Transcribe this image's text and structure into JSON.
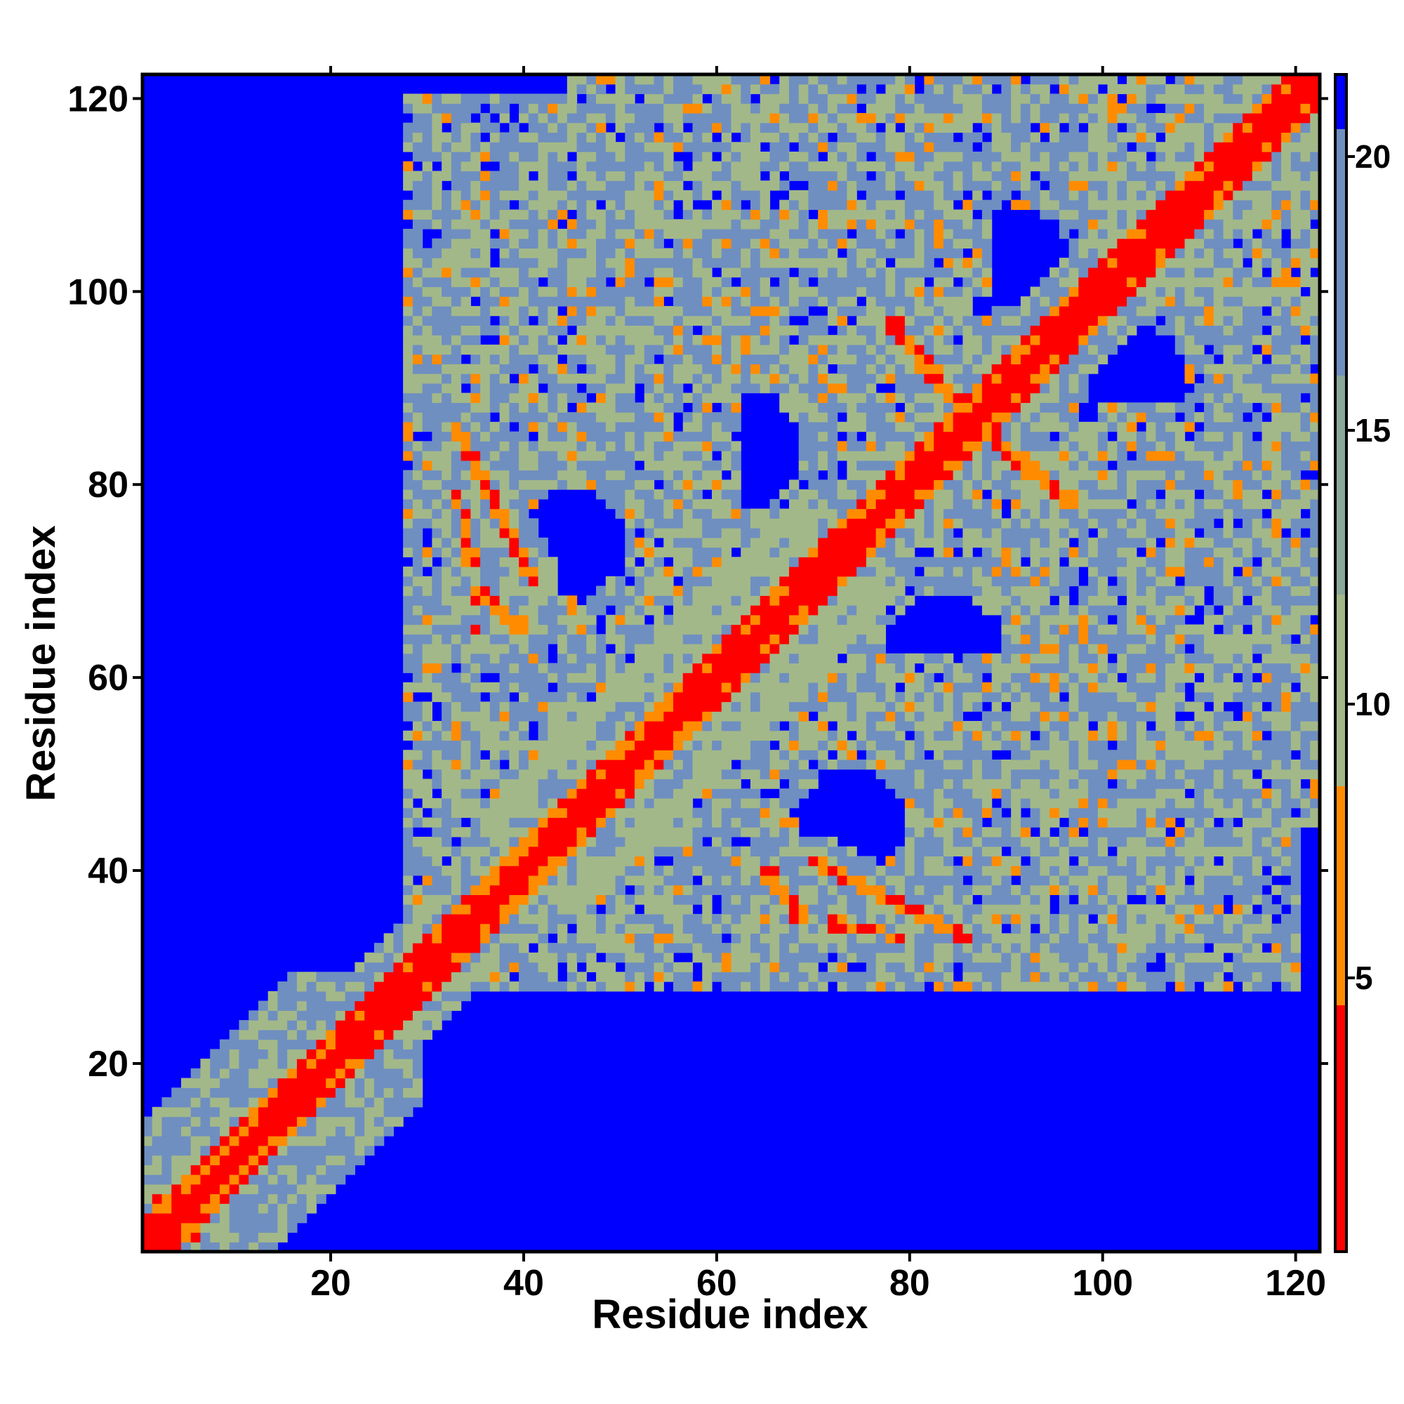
{
  "chart_data": {
    "type": "heatmap",
    "title": "",
    "xlabel": "Residue index",
    "ylabel": "Residue index",
    "n_residues": 122,
    "xlim": [
      1,
      122
    ],
    "ylim": [
      1,
      122
    ],
    "x_ticks": [
      20,
      40,
      60,
      80,
      100,
      120
    ],
    "y_ticks": [
      20,
      40,
      60,
      80,
      100,
      120
    ],
    "x_tick_labels": [
      "20",
      "40",
      "60",
      "80",
      "100",
      "120"
    ],
    "y_tick_labels": [
      "20",
      "40",
      "60",
      "80",
      "100",
      "120"
    ],
    "grid": false,
    "matrix_symmetric": true,
    "colorbar": {
      "placement": "right",
      "range": [
        0,
        21.5
      ],
      "ticks": [
        5,
        10,
        15,
        20
      ],
      "tick_labels": [
        "5",
        "10",
        "15",
        "20"
      ],
      "colors": [
        {
          "from": 0,
          "to": 4.5,
          "color": "#ff0000"
        },
        {
          "from": 4.5,
          "to": 8.5,
          "color": "#ff8c00"
        },
        {
          "from": 8.5,
          "to": 12,
          "color": "#a3b889"
        },
        {
          "from": 12,
          "to": 16,
          "color": "#8aa89a"
        },
        {
          "from": 16,
          "to": 20.5,
          "color": "#6f8fc0"
        },
        {
          "from": 20.5,
          "to": 21.5,
          "color": "#0000ff"
        }
      ]
    },
    "colors": {
      "background": "#0000ff",
      "near": "#ff0000",
      "close": "#ff8c00",
      "mid": "#a3b889",
      "far": "#6f8fc0"
    },
    "contact_bands": [
      {
        "x": [
          1,
          122
        ],
        "y": [
          1,
          122
        ],
        "width": 2.5
      },
      {
        "x": [
          33,
          41
        ],
        "y": [
          86,
          70
        ],
        "width": 3
      },
      {
        "x": [
          35,
          40
        ],
        "y": [
          69,
          65
        ],
        "width": 3
      },
      {
        "x": [
          65,
          86
        ],
        "y": [
          35,
          33
        ],
        "width": 3
      },
      {
        "x": [
          78,
          86
        ],
        "y": [
          97,
          87
        ],
        "width": 3
      },
      {
        "x": [
          88,
          97
        ],
        "y": [
          85,
          78
        ],
        "width": 3
      },
      {
        "x": [
          2,
          28
        ],
        "y": [
          5,
          28
        ],
        "width": 3
      },
      {
        "x": [
          20,
          28
        ],
        "y": [
          18,
          26
        ],
        "width": 3
      }
    ]
  }
}
